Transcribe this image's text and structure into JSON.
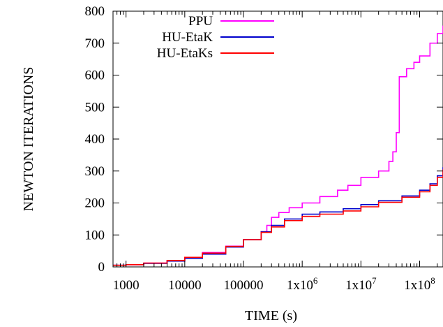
{
  "chart_data": {
    "type": "line",
    "line_style": "step",
    "xlabel": "TIME (s)",
    "ylabel": "NEWTON ITERATIONS",
    "xscale": "log",
    "xlim": [
      600,
      250000000
    ],
    "ylim": [
      0,
      800
    ],
    "xticks": [
      {
        "value": 1000,
        "label": "1000"
      },
      {
        "value": 10000,
        "label": "10000"
      },
      {
        "value": 100000,
        "label": "100000"
      },
      {
        "value": 1000000,
        "label": "1x10",
        "exp": "6"
      },
      {
        "value": 10000000,
        "label": "1x10",
        "exp": "7"
      },
      {
        "value": 100000000,
        "label": "1x10",
        "exp": "8"
      }
    ],
    "yticks": [
      "0",
      "100",
      "200",
      "300",
      "400",
      "500",
      "600",
      "700",
      "800"
    ],
    "grid": false,
    "legend_position": "top-left",
    "series": [
      {
        "name": "PPU",
        "color": "#ff00ff",
        "x": [
          600,
          1000,
          2000,
          5000,
          10000,
          20000,
          50000,
          100000,
          200000,
          250000,
          300000,
          400000,
          600000,
          1000000,
          2000000,
          4000000,
          6000000,
          10000000,
          20000000,
          30000000,
          35000000,
          40000000,
          45000000,
          60000000,
          80000000,
          100000000,
          150000000,
          200000000,
          250000000
        ],
        "y": [
          5,
          7,
          12,
          20,
          30,
          45,
          65,
          85,
          110,
          130,
          155,
          170,
          185,
          200,
          220,
          240,
          255,
          280,
          300,
          330,
          360,
          420,
          595,
          620,
          640,
          660,
          700,
          730,
          755
        ]
      },
      {
        "name": "HU-EtaK",
        "color": "#0000cc",
        "x": [
          600,
          1000,
          2000,
          5000,
          10000,
          20000,
          50000,
          100000,
          200000,
          300000,
          500000,
          1000000,
          2000000,
          5000000,
          10000000,
          20000000,
          50000000,
          100000000,
          150000000,
          200000000,
          250000000
        ],
        "y": [
          5,
          7,
          11,
          18,
          27,
          40,
          62,
          85,
          110,
          130,
          150,
          165,
          172,
          182,
          195,
          207,
          222,
          240,
          260,
          285,
          312
        ]
      },
      {
        "name": "HU-EtaKs",
        "color": "#ff0000",
        "x": [
          600,
          1000,
          2000,
          5000,
          10000,
          20000,
          50000,
          100000,
          200000,
          300000,
          500000,
          1000000,
          2000000,
          5000000,
          10000000,
          20000000,
          50000000,
          100000000,
          150000000,
          200000000,
          250000000
        ],
        "y": [
          5,
          7,
          12,
          20,
          30,
          43,
          64,
          85,
          108,
          125,
          145,
          158,
          165,
          175,
          188,
          202,
          218,
          235,
          255,
          280,
          305
        ]
      }
    ]
  }
}
